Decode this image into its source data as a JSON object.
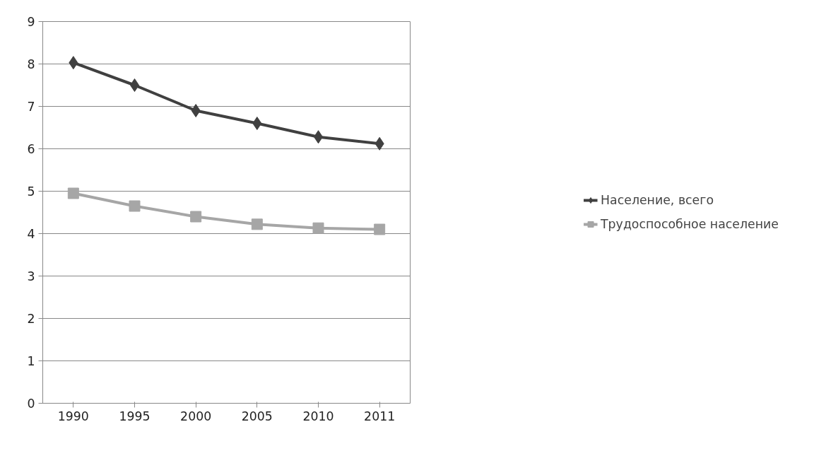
{
  "chart_data": {
    "type": "line",
    "categories": [
      "1990",
      "1995",
      "2000",
      "2005",
      "2010",
      "2011"
    ],
    "series": [
      {
        "name": "Население, всего",
        "color": "#404040",
        "marker": "diamond",
        "values": [
          8.03,
          7.5,
          6.9,
          6.6,
          6.28,
          6.12
        ]
      },
      {
        "name": "Трудоспособное население",
        "color": "#a6a6a6",
        "marker": "square",
        "values": [
          4.95,
          4.65,
          4.4,
          4.22,
          4.13,
          4.1
        ]
      }
    ],
    "ylim": [
      0,
      9
    ],
    "yticks": [
      0,
      1,
      2,
      3,
      4,
      5,
      6,
      7,
      8,
      9
    ],
    "grid": "y",
    "legend": "right",
    "line_style": "solid"
  }
}
